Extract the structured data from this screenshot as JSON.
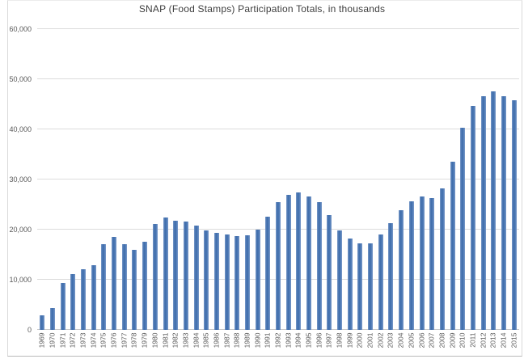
{
  "chart": {
    "title": "SNAP (Food Stamps) Participation Totals, in thousands"
  },
  "chart_data": {
    "type": "bar",
    "title": "SNAP (Food Stamps) Participation Totals, in thousands",
    "xlabel": "",
    "ylabel": "",
    "categories": [
      "1969",
      "1970",
      "1971",
      "1972",
      "1973",
      "1974",
      "1975",
      "1976",
      "1977",
      "1978",
      "1979",
      "1980",
      "1981",
      "1982",
      "1983",
      "1984",
      "1985",
      "1986",
      "1987",
      "1988",
      "1989",
      "1990",
      "1991",
      "1992",
      "1993",
      "1994",
      "1995",
      "1996",
      "1997",
      "1998",
      "1999",
      "2000",
      "2001",
      "2002",
      "2003",
      "2004",
      "2005",
      "2006",
      "2007",
      "2008",
      "2009",
      "2010",
      "2011",
      "2012",
      "2013",
      "2014",
      "2015"
    ],
    "values": [
      2878,
      4340,
      9368,
      11109,
      12166,
      12862,
      17064,
      18549,
      17077,
      16001,
      17653,
      21082,
      22430,
      21717,
      21625,
      20854,
      19899,
      19429,
      19113,
      18645,
      18806,
      20049,
      22625,
      25407,
      26987,
      27474,
      26619,
      25543,
      22858,
      19791,
      18183,
      17194,
      17318,
      19096,
      21250,
      23811,
      25628,
      26549,
      26316,
      28223,
      33490,
      40302,
      44709,
      46609,
      47636,
      46664,
      45767
    ],
    "ylim": [
      0,
      60000
    ],
    "ytick_interval": 10000,
    "ytick_labels": [
      "0",
      "10,000",
      "20,000",
      "30,000",
      "40,000",
      "50,000",
      "60,000"
    ],
    "grid": true,
    "legend": false,
    "bar_color": "#4a77b3",
    "bar_edge_color": "#3f6dab",
    "bar_highlight_color": "#7b9bca",
    "gridline_color": "#dcdcdc",
    "axis_line_color": "#c9c9c9",
    "tick_label_color": "#595959",
    "title_color": "#3d3d3d"
  }
}
